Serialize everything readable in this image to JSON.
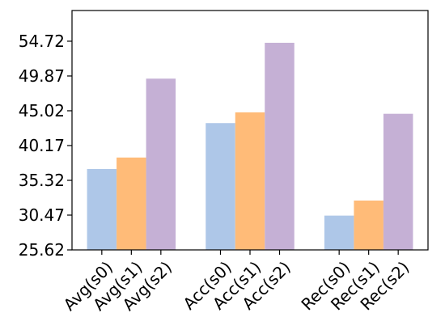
{
  "chart_data": {
    "type": "bar",
    "categories": [
      "Avg(s0)",
      "Avg(s1)",
      "Avg(s2)",
      "Acc(s0)",
      "Acc(s1)",
      "Acc(s2)",
      "Rec(s0)",
      "Rec(s1)",
      "Rec(s2)"
    ],
    "groups": [
      {
        "values": [
          36.9,
          38.5,
          49.5
        ],
        "labels": [
          "Avg(s0)",
          "Avg(s1)",
          "Avg(s2)"
        ]
      },
      {
        "values": [
          43.3,
          44.8,
          54.5
        ],
        "labels": [
          "Acc(s0)",
          "Acc(s1)",
          "Acc(s2)"
        ]
      },
      {
        "values": [
          30.4,
          32.5,
          44.6
        ],
        "labels": [
          "Rec(s0)",
          "Rec(s1)",
          "Rec(s2)"
        ]
      }
    ],
    "series_colors": [
      "#aec7e8",
      "#ffbb78",
      "#c5b0d5"
    ],
    "yticks": [
      "25.62",
      "30.47",
      "35.32",
      "40.17",
      "45.02",
      "49.87",
      "54.72"
    ],
    "ylim": [
      25.62,
      59.0
    ],
    "title": "",
    "xlabel": "",
    "ylabel": "",
    "grid": false,
    "legend": false
  }
}
